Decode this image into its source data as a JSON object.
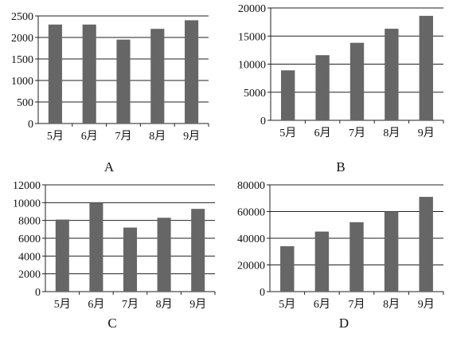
{
  "colors": {
    "bar": "#666666",
    "axis": "#222222",
    "grid": "#222222"
  },
  "chart_data": [
    {
      "type": "bar",
      "panel_label": "A",
      "categories": [
        "5月",
        "6月",
        "7月",
        "8月",
        "9月"
      ],
      "values": [
        2300,
        2300,
        1950,
        2200,
        2400
      ],
      "ylim": [
        0,
        2500
      ],
      "yticks": [
        0,
        500,
        1000,
        1500,
        2000,
        2500
      ],
      "grid": true,
      "title": "",
      "xlabel": "",
      "ylabel": ""
    },
    {
      "type": "bar",
      "panel_label": "B",
      "categories": [
        "5月",
        "6月",
        "7月",
        "8月",
        "9月"
      ],
      "values": [
        8900,
        11600,
        13800,
        16300,
        18600
      ],
      "ylim": [
        0,
        20000
      ],
      "yticks": [
        0,
        5000,
        10000,
        15000,
        20000
      ],
      "grid": true,
      "title": "",
      "xlabel": "",
      "ylabel": ""
    },
    {
      "type": "bar",
      "panel_label": "C",
      "categories": [
        "5月",
        "6月",
        "7月",
        "8月",
        "9月"
      ],
      "values": [
        8100,
        10000,
        7200,
        8300,
        9300
      ],
      "ylim": [
        0,
        12000
      ],
      "yticks": [
        0,
        2000,
        4000,
        6000,
        8000,
        10000,
        12000
      ],
      "grid": true,
      "title": "",
      "xlabel": "",
      "ylabel": ""
    },
    {
      "type": "bar",
      "panel_label": "D",
      "categories": [
        "5月",
        "6月",
        "7月",
        "8月",
        "9月"
      ],
      "values": [
        34000,
        45000,
        52000,
        60000,
        71000
      ],
      "ylim": [
        0,
        80000
      ],
      "yticks": [
        0,
        20000,
        40000,
        60000,
        80000
      ],
      "grid": true,
      "title": "",
      "xlabel": "",
      "ylabel": ""
    }
  ]
}
